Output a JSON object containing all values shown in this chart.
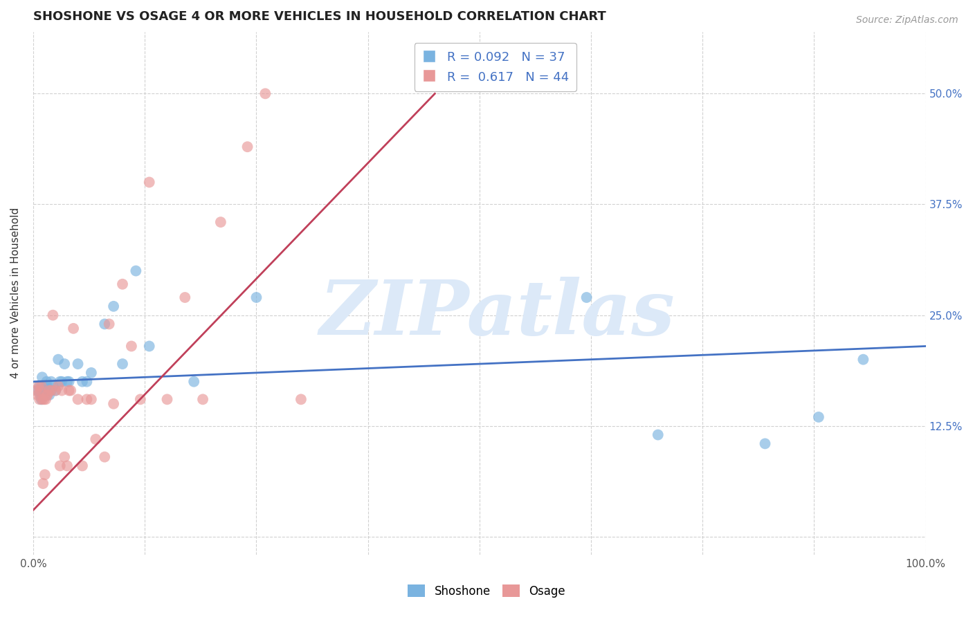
{
  "title": "SHOSHONE VS OSAGE 4 OR MORE VEHICLES IN HOUSEHOLD CORRELATION CHART",
  "source": "Source: ZipAtlas.com",
  "ylabel": "4 or more Vehicles in Household",
  "xlim": [
    0.0,
    1.0
  ],
  "ylim": [
    -0.02,
    0.57
  ],
  "xticks_major": [
    0.0,
    0.5,
    1.0
  ],
  "xticks_minor": [
    0.0,
    0.125,
    0.25,
    0.375,
    0.5,
    0.625,
    0.75,
    0.875,
    1.0
  ],
  "xticklabels_major": [
    "0.0%",
    "",
    "100.0%"
  ],
  "yticks": [
    0.0,
    0.125,
    0.25,
    0.375,
    0.5
  ],
  "yticklabels": [
    "",
    "12.5%",
    "25.0%",
    "37.5%",
    "50.0%"
  ],
  "shoshone_color": "#7ab3e0",
  "osage_color": "#e89898",
  "shoshone_R": 0.092,
  "shoshone_N": 37,
  "osage_R": 0.617,
  "osage_N": 44,
  "tick_color": "#4472c4",
  "watermark_text": "ZIPatlas",
  "watermark_color": "#dce9f8",
  "shoshone_x": [
    0.005,
    0.007,
    0.008,
    0.009,
    0.01,
    0.01,
    0.012,
    0.013,
    0.015,
    0.015,
    0.018,
    0.02,
    0.02,
    0.022,
    0.025,
    0.028,
    0.03,
    0.032,
    0.035,
    0.038,
    0.04,
    0.05,
    0.055,
    0.06,
    0.065,
    0.08,
    0.09,
    0.1,
    0.115,
    0.13,
    0.18,
    0.25,
    0.62,
    0.7,
    0.82,
    0.88,
    0.93
  ],
  "shoshone_y": [
    0.165,
    0.17,
    0.16,
    0.155,
    0.17,
    0.18,
    0.165,
    0.16,
    0.17,
    0.175,
    0.16,
    0.165,
    0.175,
    0.17,
    0.165,
    0.2,
    0.175,
    0.175,
    0.195,
    0.175,
    0.175,
    0.195,
    0.175,
    0.175,
    0.185,
    0.24,
    0.26,
    0.195,
    0.3,
    0.215,
    0.175,
    0.27,
    0.27,
    0.115,
    0.105,
    0.135,
    0.2
  ],
  "osage_x": [
    0.003,
    0.005,
    0.006,
    0.007,
    0.008,
    0.009,
    0.01,
    0.011,
    0.012,
    0.013,
    0.014,
    0.015,
    0.016,
    0.018,
    0.02,
    0.022,
    0.025,
    0.028,
    0.03,
    0.032,
    0.035,
    0.038,
    0.04,
    0.042,
    0.045,
    0.05,
    0.055,
    0.06,
    0.065,
    0.07,
    0.08,
    0.085,
    0.09,
    0.1,
    0.11,
    0.12,
    0.13,
    0.15,
    0.17,
    0.19,
    0.21,
    0.24,
    0.26,
    0.3
  ],
  "osage_y": [
    0.165,
    0.16,
    0.17,
    0.155,
    0.165,
    0.17,
    0.155,
    0.06,
    0.155,
    0.07,
    0.155,
    0.16,
    0.16,
    0.165,
    0.165,
    0.25,
    0.165,
    0.17,
    0.08,
    0.165,
    0.09,
    0.08,
    0.165,
    0.165,
    0.235,
    0.155,
    0.08,
    0.155,
    0.155,
    0.11,
    0.09,
    0.24,
    0.15,
    0.285,
    0.215,
    0.155,
    0.4,
    0.155,
    0.27,
    0.155,
    0.355,
    0.44,
    0.5,
    0.155
  ],
  "osage_line_x": [
    0.0,
    0.45
  ],
  "osage_line_y": [
    0.03,
    0.5
  ],
  "shoshone_line_x": [
    0.0,
    1.0
  ],
  "shoshone_line_y": [
    0.175,
    0.215
  ],
  "line_color_shoshone": "#4472c4",
  "line_color_osage": "#c0405a"
}
